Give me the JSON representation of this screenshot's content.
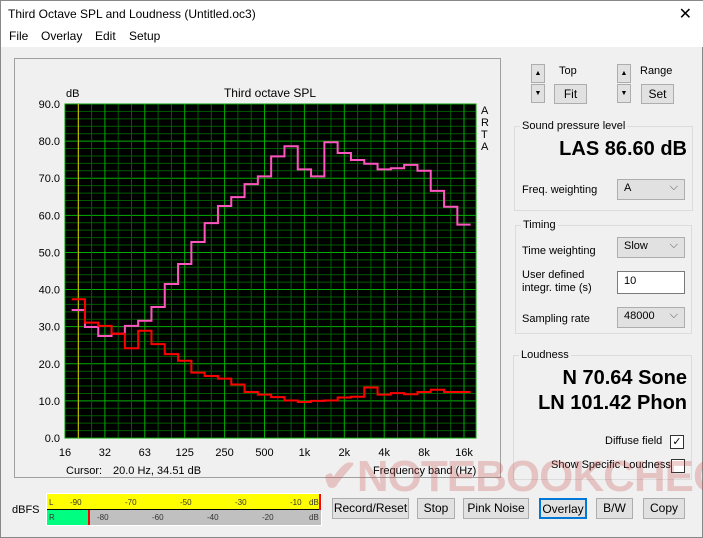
{
  "window": {
    "title": "Third Octave SPL and Loudness (Untitled.oc3)",
    "close_icon": "close-icon"
  },
  "menu": [
    "File",
    "Overlay",
    "Edit",
    "Setup"
  ],
  "chart_data": {
    "type": "line",
    "title": "Third octave SPL",
    "ylabel": "dB",
    "xlabel": "Frequency band (Hz)",
    "watermark_side": "ARTA",
    "ylim": [
      0,
      90
    ],
    "yticks": [
      "0.0",
      "10.0",
      "20.0",
      "30.0",
      "40.0",
      "50.0",
      "60.0",
      "70.0",
      "80.0",
      "90.0"
    ],
    "xticks": [
      "16",
      "32",
      "63",
      "125",
      "250",
      "500",
      "1k",
      "2k",
      "4k",
      "8k",
      "16k"
    ],
    "x": [
      "20",
      "25",
      "31.5",
      "40",
      "50",
      "63",
      "80",
      "100",
      "125",
      "160",
      "200",
      "250",
      "315",
      "400",
      "500",
      "630",
      "800",
      "1k",
      "1.25k",
      "1.6k",
      "2k",
      "2.5k",
      "3.15k",
      "4k",
      "5k",
      "6.3k",
      "8k",
      "10k",
      "12.5k",
      "16k"
    ],
    "grid": true,
    "background": "#000000",
    "grid_color": "#00a000",
    "series": [
      {
        "color": "#ff55c0",
        "values": [
          34.5,
          29.9,
          27.5,
          28.1,
          30.2,
          31.6,
          35.3,
          41.5,
          46.9,
          52.8,
          57.9,
          62.5,
          64.9,
          68.4,
          70.5,
          75.9,
          78.6,
          72.4,
          70.5,
          79.7,
          76.8,
          74.9,
          73.9,
          72.4,
          72.7,
          73.6,
          72.0,
          66.6,
          62.3,
          57.5
        ]
      },
      {
        "color": "#ff0000",
        "values": [
          37.4,
          31.1,
          30.2,
          28.1,
          24.2,
          28.9,
          25.3,
          22.6,
          20.8,
          17.6,
          16.7,
          16.0,
          14.4,
          12.4,
          11.7,
          11.0,
          10.1,
          9.7,
          10.0,
          10.1,
          10.9,
          11.1,
          13.6,
          11.7,
          12.1,
          11.8,
          12.4,
          13.0,
          12.4,
          12.4
        ]
      }
    ],
    "cursor_label": "Cursor:",
    "cursor_value": "20.0 Hz, 34.51 dB"
  },
  "controls": {
    "top_label": "Top",
    "fit": "Fit",
    "range_label": "Range",
    "set": "Set",
    "spl": {
      "label": "Sound pressure level",
      "value": "LAS 86.60 dB",
      "freq_weighting_label": "Freq. weighting",
      "freq_weighting": "A"
    },
    "timing": {
      "label": "Timing",
      "time_weighting_label": "Time weighting",
      "time_weighting": "Slow",
      "integr_label_1": "User defined",
      "integr_label_2": "integr. time (s)",
      "integr_value": "10",
      "sampling_label": "Sampling rate",
      "sampling": "48000"
    },
    "loudness": {
      "label": "Loudness",
      "n": "N 70.64 Sone",
      "ln": "LN 101.42 Phon",
      "diffuse_label": "Diffuse field",
      "diffuse_checked": true,
      "specific_label": "Show Specific Loudness",
      "specific_checked": false
    }
  },
  "meter": {
    "label": "dBFS",
    "L": "L",
    "R": "R",
    "top_ticks": [
      "-90",
      "-70",
      "-50",
      "-30",
      "-10",
      "dB"
    ],
    "bottom_ticks": [
      "-80",
      "-60",
      "-40",
      "-20",
      "dB"
    ],
    "left_color": "#ffff00",
    "right_level_color": "#00ff80"
  },
  "buttons": [
    "Record/Reset",
    "Stop",
    "Pink Noise",
    "Overlay",
    "B/W",
    "Copy"
  ],
  "watermark": "NOTEBOOKCHECK"
}
